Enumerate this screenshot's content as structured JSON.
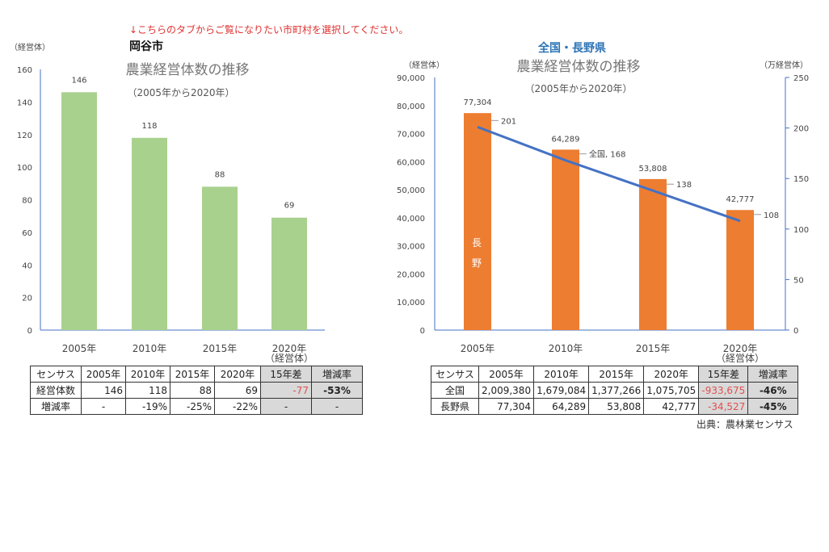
{
  "notice": "↓こちらのタブからご覧になりたい市町村を選択してください。",
  "source": "出典：農林業センサス",
  "chart_data": [
    {
      "type": "bar",
      "heading": "岡谷市",
      "title": "農業経営体数の推移",
      "subtitle": "（2005年から2020年）",
      "ylabel": "（経営体）",
      "ylim": [
        0,
        160
      ],
      "yticks": [
        0,
        20,
        40,
        60,
        80,
        100,
        120,
        140,
        160
      ],
      "categories": [
        "2005年",
        "2010年",
        "2015年",
        "2020年"
      ],
      "xunit": "（経営体）",
      "values": [
        146,
        118,
        88,
        69
      ],
      "color": "#a9d18e"
    },
    {
      "type": "bar+line",
      "heading": "全国・長野県",
      "title": "農業経営体数の推移",
      "subtitle": "（2005年から2020年）",
      "ylabel": "（経営体）",
      "y2label": "（万経営体）",
      "ylim": [
        0,
        90000
      ],
      "yticks": [
        "0",
        "10,000",
        "20,000",
        "30,000",
        "40,000",
        "50,000",
        "60,000",
        "70,000",
        "80,000",
        "90,000"
      ],
      "y2lim": [
        0,
        250
      ],
      "y2ticks": [
        0,
        50,
        100,
        150,
        200,
        250
      ],
      "categories": [
        "2005年",
        "2010年",
        "2015年",
        "2020年"
      ],
      "xunit": "（経営体）",
      "series": [
        {
          "name": "長野",
          "type": "bar",
          "axis": "left",
          "values": [
            77304,
            64289,
            53808,
            42777
          ],
          "labels": [
            "77,304",
            "64,289",
            "53,808",
            "42,777"
          ],
          "color": "#ed7d31"
        },
        {
          "name": "全国",
          "type": "line",
          "axis": "right",
          "values": [
            201,
            168,
            138,
            108
          ],
          "labels": [
            "201",
            "全国, 168",
            "138",
            "108"
          ],
          "color": "#4472c4"
        }
      ]
    }
  ],
  "tables": [
    {
      "header": [
        "センサス",
        "2005年",
        "2010年",
        "2015年",
        "2020年",
        "15年差",
        "増減率"
      ],
      "rows": [
        [
          "経営体数",
          "146",
          "118",
          "88",
          "69",
          "-77",
          "-53%"
        ],
        [
          "増減率",
          "-",
          "-19%",
          "-25%",
          "-22%",
          "-",
          "-"
        ]
      ]
    },
    {
      "header": [
        "センサス",
        "2005年",
        "2010年",
        "2015年",
        "2020年",
        "15年差",
        "増減率"
      ],
      "rows": [
        [
          "全国",
          "2,009,380",
          "1,679,084",
          "1,377,266",
          "1,075,705",
          "-933,675",
          "-46%"
        ],
        [
          "長野県",
          "77,304",
          "64,289",
          "53,808",
          "42,777",
          "-34,527",
          "-45%"
        ]
      ]
    }
  ]
}
